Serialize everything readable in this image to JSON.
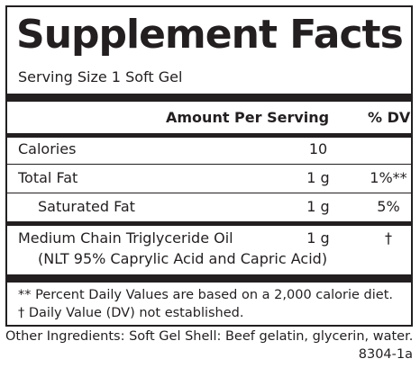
{
  "label": {
    "title": "Supplement Facts",
    "serving_size": "Serving Size 1 Soft Gel",
    "header": {
      "amount": "Amount Per Serving",
      "dv": "% DV"
    },
    "rows": [
      {
        "name": "Calories",
        "amount": "10",
        "dv": ""
      },
      {
        "name": "Total Fat",
        "amount": "1 g",
        "dv": "1%**"
      },
      {
        "name": "Saturated Fat",
        "amount": "1 g",
        "dv": "5%"
      },
      {
        "name": "Medium Chain Triglyceride Oil",
        "subname": "(NLT 95% Caprylic Acid and Capric Acid)",
        "amount": "1 g",
        "dv": "†"
      }
    ],
    "footnotes": [
      "** Percent Daily Values are based on a 2,000 calorie diet.",
      "† Daily Value (DV) not established."
    ]
  },
  "other_ingredients": "Other Ingredients: Soft Gel Shell: Beef gelatin, glycerin, water.",
  "product_code": "8304-1a"
}
